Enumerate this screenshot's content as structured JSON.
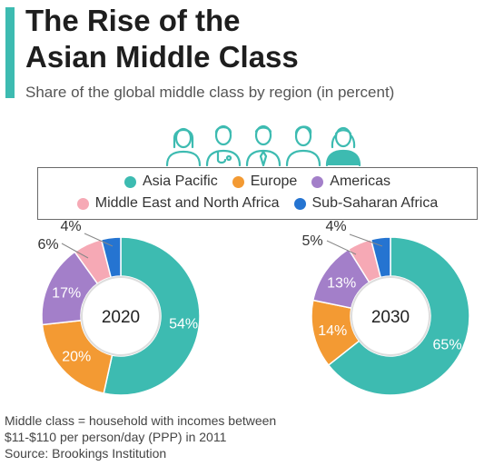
{
  "header": {
    "title_line1": "The Rise of the",
    "title_line2": "Asian Middle Class",
    "subtitle": "Share of the global middle class by region (in percent)"
  },
  "icons": [
    "person-icon",
    "doctor-icon",
    "businessman-icon",
    "man-icon",
    "woman-icon"
  ],
  "colors": {
    "accent": "#3dbbb1",
    "asia_pacific": "#3dbbb1",
    "europe": "#f39a33",
    "americas": "#a37fc9",
    "mena": "#f6a9b5",
    "sub_saharan_africa": "#2574d1"
  },
  "legend": {
    "row1": [
      "Asia Pacific",
      "Europe",
      "Americas"
    ],
    "row2": [
      "Middle East and North Africa",
      "Sub-Saharan Africa"
    ]
  },
  "chart_data": [
    {
      "type": "pie",
      "center_label": "2020",
      "categories": [
        "Asia Pacific",
        "Europe",
        "Americas",
        "Middle East and North Africa",
        "Sub-Saharan Africa"
      ],
      "values": [
        54,
        20,
        17,
        6,
        4
      ],
      "labels": [
        "54%",
        "20%",
        "17%",
        "6%",
        "4%"
      ]
    },
    {
      "type": "pie",
      "center_label": "2030",
      "categories": [
        "Asia Pacific",
        "Europe",
        "Americas",
        "Middle East and North Africa",
        "Sub-Saharan Africa"
      ],
      "values": [
        65,
        14,
        13,
        5,
        4
      ],
      "labels": [
        "65%",
        "14%",
        "13%",
        "5%",
        "4%"
      ]
    }
  ],
  "footnote": {
    "line1": "Middle class = household with incomes between",
    "line2": "$11-$110 per person/day (PPP) in 2011",
    "source": "Source: Brookings Institution"
  }
}
